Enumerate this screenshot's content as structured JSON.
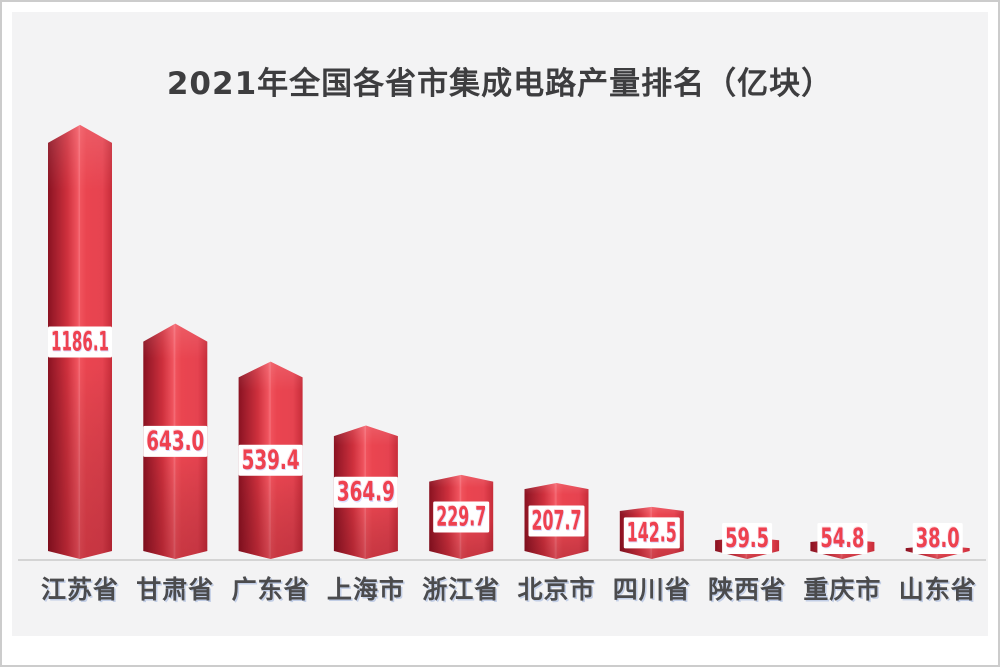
{
  "chart_data": {
    "type": "bar",
    "title": "2021年全国各省市集成电路产量排名（亿块）",
    "unit": "亿块",
    "categories": [
      "江苏省",
      "甘肃省",
      "广东省",
      "上海市",
      "浙江省",
      "北京市",
      "四川省",
      "陕西省",
      "重庆市",
      "山东省"
    ],
    "values": [
      1186.1,
      643.0,
      539.4,
      364.9,
      229.7,
      207.7,
      142.5,
      59.5,
      54.8,
      38.0
    ],
    "value_labels": [
      "1186.1",
      "643.0",
      "539.4",
      "364.9",
      "229.7",
      "207.7",
      "142.5",
      "59.5",
      "54.8",
      "38.0"
    ],
    "xlabel": "",
    "ylabel": "",
    "ylim": [
      0,
      1200
    ],
    "grid": false,
    "legend": null,
    "bar_style": "3d-prism-column-with-peak-top-and-v-bottom",
    "value_label_style": "white-box-on-bar-with-red-text",
    "colors": {
      "bar_dark": "#8a1120",
      "bar_main": "#e8434f",
      "bar_ridge": "#f5707a",
      "bar_edge": "#c72c39",
      "value_text": "#ee4150",
      "value_box_bg": "#ffffff",
      "axis_line": "#c9c9c9",
      "category_text": "#4b4b4d",
      "title_text": "#3d3d3f",
      "panel_bg": "#f3f3f4",
      "outer_bg": "#ffffff",
      "border": "#cccccc"
    }
  }
}
